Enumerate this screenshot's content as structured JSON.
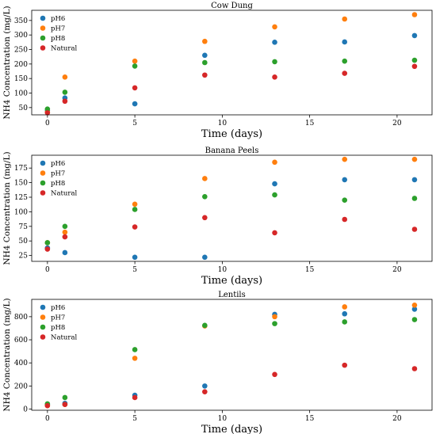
{
  "chart_data": [
    {
      "type": "scatter",
      "title": "Cow Dung",
      "xlabel": "Time (days)",
      "ylabel": "NH4 Concentration (mg/L)",
      "xlim": [
        -0.9,
        22.0
      ],
      "ylim": [
        25,
        385
      ],
      "xticks": [
        0,
        5,
        10,
        15,
        20
      ],
      "yticks": [
        50,
        100,
        150,
        200,
        250,
        300,
        350
      ],
      "legend_position": "upper-left",
      "series": [
        {
          "name": "pH6",
          "color": "#1f77b4",
          "x": [
            0,
            1,
            5,
            9,
            13,
            17,
            21
          ],
          "y": [
            40,
            83,
            63,
            230,
            275,
            276,
            298
          ]
        },
        {
          "name": "pH7",
          "color": "#ff7f0e",
          "x": [
            0,
            1,
            5,
            9,
            13,
            17,
            21
          ],
          "y": [
            35,
            155,
            210,
            278,
            328,
            355,
            370
          ]
        },
        {
          "name": "pH8",
          "color": "#2ca02c",
          "x": [
            0,
            1,
            5,
            9,
            13,
            17,
            21
          ],
          "y": [
            45,
            103,
            193,
            205,
            208,
            210,
            213
          ]
        },
        {
          "name": "Natural",
          "color": "#d62728",
          "x": [
            0,
            1,
            5,
            9,
            13,
            17,
            21
          ],
          "y": [
            32,
            72,
            118,
            162,
            155,
            168,
            192
          ]
        }
      ]
    },
    {
      "type": "scatter",
      "title": "Banana Peels",
      "xlabel": "Time (days)",
      "ylabel": "NH4 Concentration (mg/L)",
      "xlim": [
        -0.9,
        22.0
      ],
      "ylim": [
        15,
        197
      ],
      "xticks": [
        0,
        5,
        10,
        15,
        20
      ],
      "yticks": [
        25,
        50,
        75,
        100,
        125,
        150,
        175
      ],
      "legend_position": "upper-left",
      "series": [
        {
          "name": "pH6",
          "color": "#1f77b4",
          "x": [
            0,
            1,
            5,
            9,
            13,
            17,
            21
          ],
          "y": [
            38,
            30,
            22,
            22,
            148,
            155,
            155
          ]
        },
        {
          "name": "pH7",
          "color": "#ff7f0e",
          "x": [
            0,
            1,
            5,
            9,
            13,
            17,
            21
          ],
          "y": [
            47,
            65,
            113,
            157,
            185,
            190,
            190
          ]
        },
        {
          "name": "pH8",
          "color": "#2ca02c",
          "x": [
            0,
            1,
            5,
            9,
            13,
            17,
            21
          ],
          "y": [
            47,
            75,
            104,
            126,
            129,
            120,
            123
          ]
        },
        {
          "name": "Natural",
          "color": "#d62728",
          "x": [
            0,
            1,
            5,
            9,
            13,
            17,
            21
          ],
          "y": [
            36,
            57,
            74,
            90,
            64,
            87,
            70
          ]
        }
      ]
    },
    {
      "type": "scatter",
      "title": "Lentils",
      "xlabel": "Time (days)",
      "ylabel": "NH4 Concentration (mg/L)",
      "xlim": [
        -0.9,
        22.0
      ],
      "ylim": [
        -10,
        950
      ],
      "xticks": [
        0,
        5,
        10,
        15,
        20
      ],
      "yticks": [
        0,
        200,
        400,
        600,
        800
      ],
      "legend_position": "upper-left",
      "series": [
        {
          "name": "pH6",
          "color": "#1f77b4",
          "x": [
            0,
            1,
            5,
            9,
            13,
            17,
            21
          ],
          "y": [
            40,
            50,
            120,
            200,
            820,
            825,
            865
          ]
        },
        {
          "name": "pH7",
          "color": "#ff7f0e",
          "x": [
            0,
            1,
            5,
            9,
            13,
            17,
            21
          ],
          "y": [
            30,
            40,
            440,
            720,
            800,
            885,
            900
          ]
        },
        {
          "name": "pH8",
          "color": "#2ca02c",
          "x": [
            0,
            1,
            5,
            9,
            13,
            17,
            21
          ],
          "y": [
            45,
            100,
            515,
            725,
            740,
            755,
            775
          ]
        },
        {
          "name": "Natural",
          "color": "#d62728",
          "x": [
            0,
            1,
            5,
            9,
            13,
            17,
            21
          ],
          "y": [
            30,
            40,
            100,
            150,
            300,
            380,
            350
          ]
        }
      ]
    }
  ]
}
